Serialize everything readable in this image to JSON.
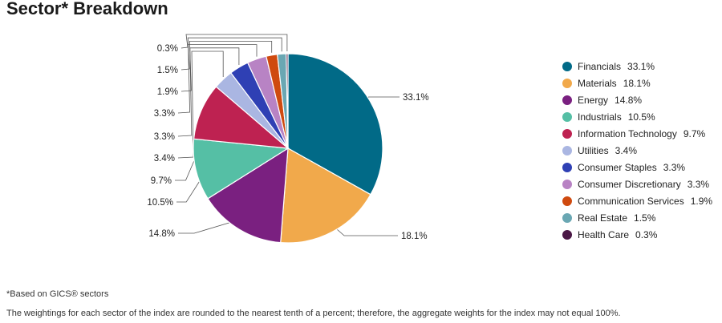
{
  "title": "Sector* Breakdown",
  "footnote": "*Based on GICS® sectors",
  "disclaimer": "The weightings for each sector of the index are rounded to the nearest tenth of a percent; therefore, the aggregate weights for the index may not equal 100%.",
  "chart_data": {
    "type": "pie",
    "title": "Sector* Breakdown",
    "legend_position": "right",
    "slices": [
      {
        "label": "Financials",
        "value": 33.1,
        "display": "33.1%",
        "color": "#016a87"
      },
      {
        "label": "Materials",
        "value": 18.1,
        "display": "18.1%",
        "color": "#f1a94b"
      },
      {
        "label": "Energy",
        "value": 14.8,
        "display": "14.8%",
        "color": "#7a2080"
      },
      {
        "label": "Industrials",
        "value": 10.5,
        "display": "10.5%",
        "color": "#55bfa5"
      },
      {
        "label": "Information Technology",
        "value": 9.7,
        "display": "9.7%",
        "color": "#be2251"
      },
      {
        "label": "Utilities",
        "value": 3.4,
        "display": "3.4%",
        "color": "#aab6e2"
      },
      {
        "label": "Consumer Staples",
        "value": 3.3,
        "display": "3.3%",
        "color": "#2f40b4"
      },
      {
        "label": "Consumer Discretionary",
        "value": 3.3,
        "display": "3.3%",
        "color": "#b883c4"
      },
      {
        "label": "Communication Services",
        "value": 1.9,
        "display": "1.9%",
        "color": "#cf4a0f"
      },
      {
        "label": "Real Estate",
        "value": 1.5,
        "display": "1.5%",
        "color": "#6aa7b3"
      },
      {
        "label": "Health Care",
        "value": 0.3,
        "display": "0.3%",
        "color": "#4b1846"
      }
    ]
  }
}
